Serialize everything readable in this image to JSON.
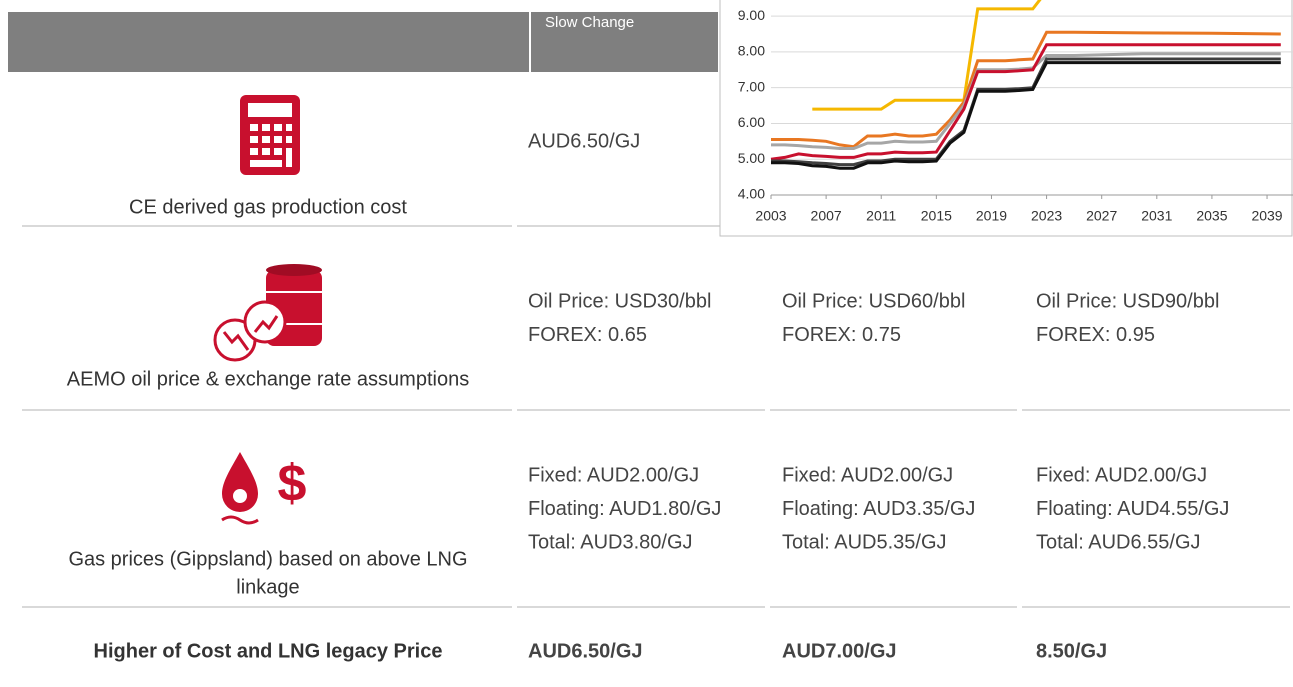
{
  "header": {
    "column_title": "Slow Change"
  },
  "table": {
    "rows": [
      {
        "label": [
          "CE derived gas production cost"
        ],
        "cells": [
          [
            "AUD6.50/GJ"
          ]
        ]
      },
      {
        "label": [
          "AEMO oil price & exchange rate assumptions"
        ],
        "cells": [
          [
            "Oil Price: USD30/bbl",
            "FOREX: 0.65"
          ],
          [
            "Oil Price: USD60/bbl",
            "FOREX: 0.75"
          ],
          [
            "Oil Price: USD90/bbl",
            "FOREX: 0.95"
          ]
        ]
      },
      {
        "label": [
          "Gas prices (Gippsland)  based on above LNG",
          "linkage"
        ],
        "cells": [
          [
            "Fixed: AUD2.00/GJ",
            "Floating: AUD1.80/GJ",
            "Total: AUD3.80/GJ"
          ],
          [
            "Fixed: AUD2.00/GJ",
            "Floating: AUD3.35/GJ",
            "Total: AUD5.35/GJ"
          ],
          [
            "Fixed: AUD2.00/GJ",
            "Floating: AUD4.55/GJ",
            "Total: AUD6.55/GJ"
          ]
        ]
      },
      {
        "label": [
          "Higher of Cost and LNG legacy Price"
        ],
        "cells": [
          [
            "AUD6.50/GJ"
          ],
          [
            "AUD7.00/GJ"
          ],
          [
            "8.50/GJ"
          ]
        ]
      }
    ]
  },
  "chart": {
    "type": "line",
    "x": [
      2003,
      2004,
      2005,
      2006,
      2007,
      2008,
      2009,
      2010,
      2011,
      2012,
      2013,
      2014,
      2015,
      2016,
      2017,
      2018,
      2019,
      2020,
      2021,
      2022,
      2023,
      2025,
      2030,
      2035,
      2040
    ],
    "xlim": [
      2003,
      2041
    ],
    "xticks": [
      2003,
      2007,
      2011,
      2015,
      2019,
      2023,
      2027,
      2031,
      2035,
      2039
    ],
    "ylim": [
      4,
      9.45
    ],
    "yticks": [
      {
        "value": 4,
        "label": "4.00"
      },
      {
        "value": 5,
        "label": "5.00"
      },
      {
        "value": 6,
        "label": "6.00"
      },
      {
        "value": 7,
        "label": "7.00"
      },
      {
        "value": 8,
        "label": "8.00"
      },
      {
        "value": 9,
        "label": "9.00"
      }
    ],
    "grid": true,
    "series": [
      {
        "color": "#f5b800",
        "values": [
          null,
          null,
          null,
          6.4,
          6.4,
          6.4,
          6.4,
          6.4,
          6.4,
          6.65,
          6.65,
          6.65,
          6.65,
          6.65,
          6.65,
          9.2,
          9.2,
          9.2,
          9.2,
          9.2,
          9.7,
          9.7,
          9.7,
          9.7,
          9.7
        ]
      },
      {
        "color": "#e87722",
        "values": [
          5.55,
          5.55,
          5.55,
          5.53,
          5.5,
          5.4,
          5.35,
          5.65,
          5.65,
          5.7,
          5.65,
          5.65,
          5.7,
          6.1,
          6.6,
          7.75,
          7.75,
          7.75,
          7.78,
          7.8,
          8.55,
          8.55,
          8.53,
          8.52,
          8.5
        ]
      },
      {
        "color": "#a6a6a6",
        "values": [
          5.4,
          5.4,
          5.38,
          5.35,
          5.33,
          5.3,
          5.3,
          5.45,
          5.45,
          5.5,
          5.48,
          5.48,
          5.5,
          6.0,
          6.5,
          7.5,
          7.5,
          7.5,
          7.52,
          7.55,
          7.9,
          7.9,
          7.95,
          7.95,
          7.95
        ]
      },
      {
        "color": "#c8102e",
        "values": [
          5.0,
          5.05,
          5.15,
          5.1,
          5.08,
          5.05,
          5.05,
          5.15,
          5.15,
          5.2,
          5.18,
          5.18,
          5.2,
          5.8,
          6.4,
          7.45,
          7.45,
          7.45,
          7.47,
          7.5,
          8.2,
          8.2,
          8.2,
          8.2,
          8.2
        ]
      },
      {
        "color": "#404040",
        "values": [
          4.95,
          4.95,
          4.93,
          4.9,
          4.88,
          4.85,
          4.85,
          4.95,
          4.95,
          5.0,
          5.0,
          5.0,
          5.0,
          5.5,
          5.8,
          6.95,
          6.95,
          6.95,
          6.97,
          7.0,
          7.8,
          7.8,
          7.8,
          7.8,
          7.8
        ]
      },
      {
        "color": "#111111",
        "values": [
          4.9,
          4.9,
          4.88,
          4.82,
          4.8,
          4.75,
          4.75,
          4.9,
          4.9,
          4.95,
          4.93,
          4.93,
          4.95,
          5.45,
          5.75,
          6.9,
          6.9,
          6.9,
          6.92,
          6.95,
          7.7,
          7.7,
          7.7,
          7.7,
          7.7
        ]
      }
    ]
  }
}
